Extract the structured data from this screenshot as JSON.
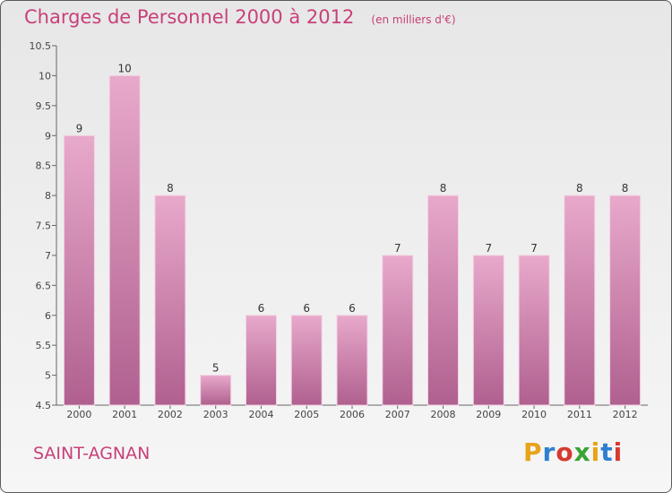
{
  "header": {
    "title": "Charges de Personnel 2000 à 2012",
    "subtitle": "(en milliers d'€)"
  },
  "footer": {
    "commune": "SAINT-AGNAN",
    "logo": "Proxiti",
    "logo_colors": [
      "#e8a31a",
      "#2f7fd0",
      "#d63a2e",
      "#3aa335",
      "#e8a31a",
      "#2f7fd0",
      "#d63a2e"
    ]
  },
  "colors": {
    "accent": "#c8407a",
    "bar": "#d98cb5",
    "bar_light": "#e8a9cb",
    "bar_dark": "#b0608f"
  },
  "chart_data": {
    "type": "bar",
    "title": "Charges de Personnel 2000 à 2012",
    "subtitle": "(en milliers d'€)",
    "categories": [
      "2000",
      "2001",
      "2002",
      "2003",
      "2004",
      "2005",
      "2006",
      "2007",
      "2008",
      "2009",
      "2010",
      "2011",
      "2012"
    ],
    "values": [
      9,
      10,
      8,
      5,
      6,
      6,
      6,
      7,
      8,
      7,
      7,
      8,
      8
    ],
    "data_labels": [
      "9",
      "10",
      "8",
      "5",
      "6",
      "6",
      "6",
      "7",
      "8",
      "7",
      "7",
      "8",
      "8"
    ],
    "ylim": [
      4.5,
      10.5
    ],
    "yticks": [
      "4.5",
      "5",
      "5.5",
      "6",
      "6.5",
      "7",
      "7.5",
      "8",
      "8.5",
      "9",
      "9.5",
      "10",
      "10.5"
    ],
    "grid": false,
    "xlabel": "",
    "ylabel": ""
  }
}
